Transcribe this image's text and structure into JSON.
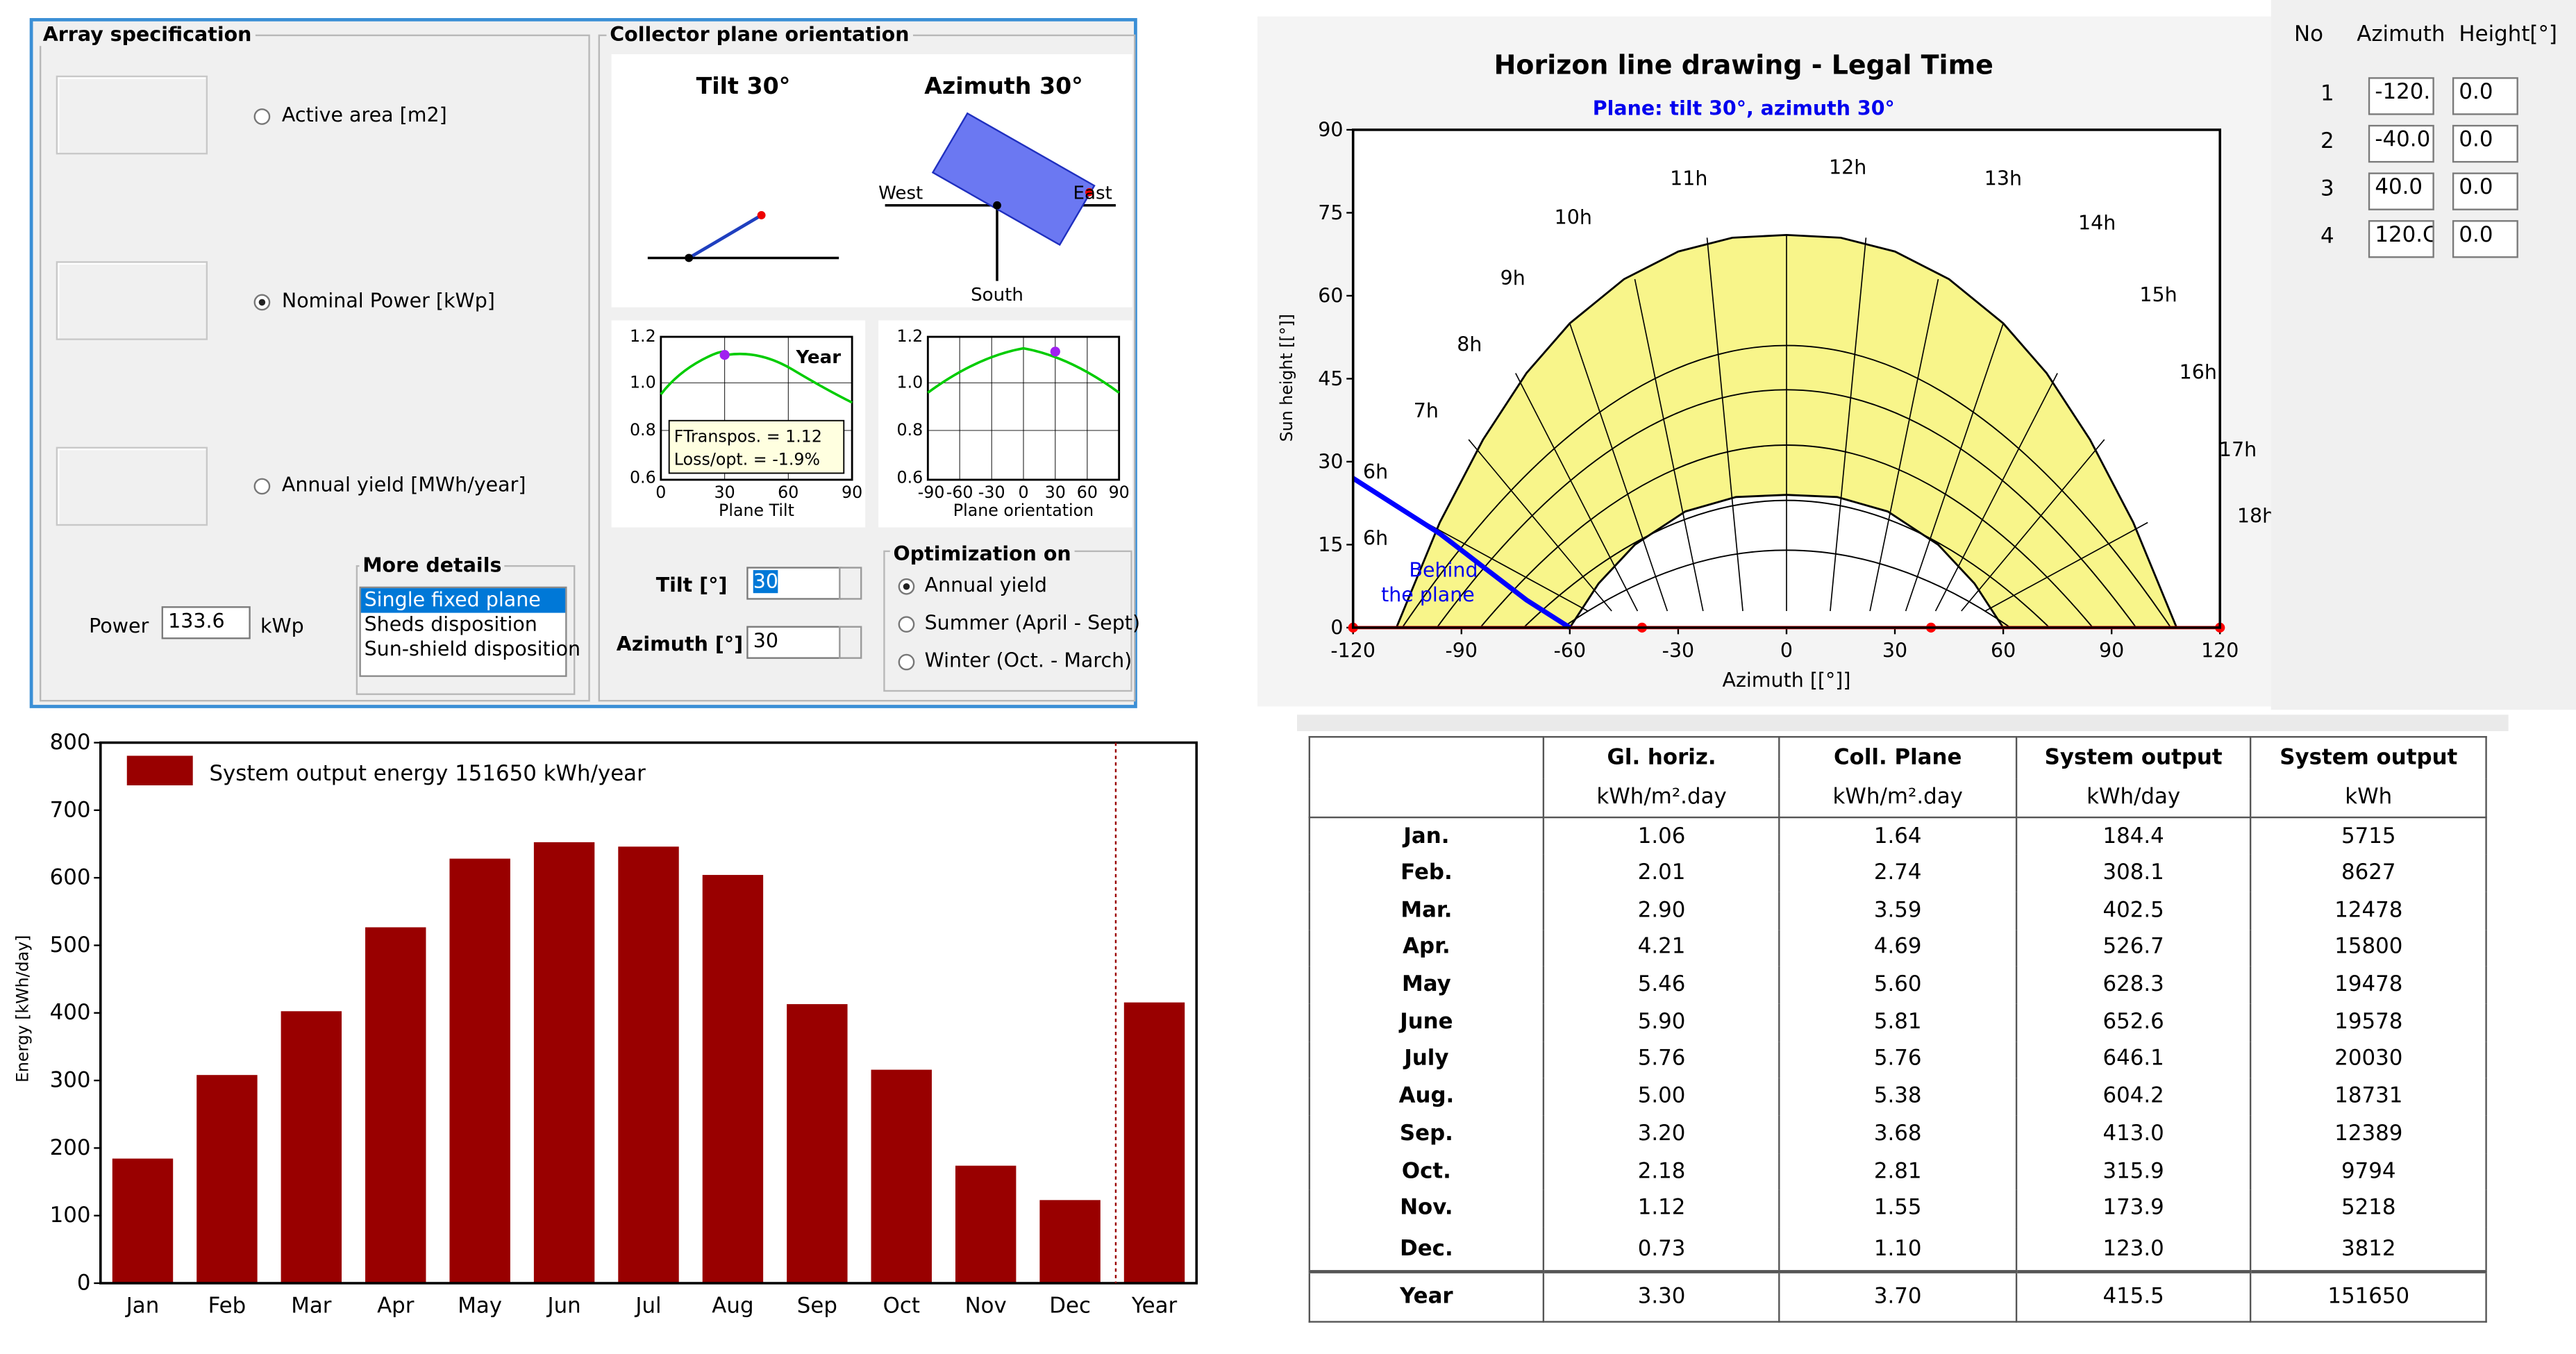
{
  "array_spec": {
    "title": "Array specification",
    "options": [
      {
        "label": "Active area [m2]",
        "selected": false
      },
      {
        "label": "Nominal Power [kWp]",
        "selected": true
      },
      {
        "label": "Annual yield [MWh/year]",
        "selected": false
      }
    ],
    "power_label": "Power",
    "power_value": "133.6",
    "power_unit": "kWp",
    "more_details": {
      "title": "More details",
      "items": [
        "Single fixed plane",
        "Sheds disposition",
        "Sun-shield disposition"
      ],
      "selected": "Single fixed plane"
    }
  },
  "orientation": {
    "title": "Collector plane orientation",
    "tilt_title": "Tilt 30°",
    "azimuth_title": "Azimuth 30°",
    "compass": {
      "west": "West",
      "east": "East",
      "south": "South"
    },
    "mini_chart_1": {
      "label": "Year",
      "xlabel": "Plane Tilt",
      "yticks": [
        "1.2",
        "1.0",
        "0.8",
        "0.6"
      ],
      "xticks": [
        "0",
        "30",
        "60",
        "90"
      ],
      "ftranspos": "FTranspos. = 1.12",
      "loss": "Loss/opt. = -1.9%"
    },
    "mini_chart_2": {
      "xlabel": "Plane orientation",
      "yticks": [
        "1.2",
        "1.0",
        "0.8",
        "0.6"
      ],
      "xticks": [
        "-90",
        "-60",
        "-30",
        "0",
        "30",
        "60",
        "90"
      ]
    },
    "tilt_label": "Tilt [°]",
    "tilt_value": "30",
    "azimuth_label": "Azimuth [°]",
    "azimuth_value": "30",
    "optimization": {
      "title": "Optimization on",
      "options": [
        {
          "label": "Annual yield",
          "selected": true
        },
        {
          "label": "Summer (April - Sept)",
          "selected": false
        },
        {
          "label": "Winter (Oct. - March)",
          "selected": false
        }
      ]
    }
  },
  "horizon": {
    "title": "Horizon line drawing - Legal Time",
    "subtitle": "Plane: tilt 30°, azimuth 30°",
    "behind_label_1": "Behind",
    "behind_label_2": "the plane",
    "hour_labels": [
      "6h",
      "6h",
      "7h",
      "8h",
      "9h",
      "10h",
      "11h",
      "12h",
      "13h",
      "14h",
      "15h",
      "16h",
      "17h",
      "18h"
    ],
    "table_headers": [
      "No",
      "Azimuth",
      "Height[°]"
    ],
    "points": [
      {
        "no": "1",
        "azimuth": "-120.",
        "height": "0.0"
      },
      {
        "no": "2",
        "azimuth": "-40.0",
        "height": "0.0"
      },
      {
        "no": "3",
        "azimuth": "40.0",
        "height": "0.0"
      },
      {
        "no": "4",
        "azimuth": "120.C",
        "height": "0.0"
      }
    ],
    "colors": {
      "sun_fill": "#f8f58a",
      "horizon": "#ff0000",
      "plane": "#0000ff"
    }
  },
  "chart_data": [
    {
      "type": "line",
      "title": "Horizon line drawing - Legal Time",
      "subtitle": "Plane: tilt 30°, azimuth 30°",
      "xlabel": "Azimuth [[°]]",
      "ylabel": "Sun height [[°]]",
      "xlim": [
        -120,
        120
      ],
      "ylim": [
        0,
        90
      ],
      "xticks": [
        -120,
        -90,
        -60,
        -30,
        0,
        30,
        60,
        90,
        120
      ],
      "yticks": [
        0,
        15,
        30,
        45,
        60,
        75,
        90
      ],
      "sun_path_peaks": [
        15,
        24,
        34,
        44,
        52
      ],
      "horizon_line": {
        "azimuth": [
          -120,
          -40,
          40,
          120
        ],
        "height": [
          0,
          0,
          0,
          0
        ]
      },
      "plane_limit": {
        "azimuth": [
          -120,
          -108,
          -96,
          -84,
          -72,
          -60
        ],
        "height": [
          27,
          22,
          17,
          11,
          5,
          0
        ]
      }
    },
    {
      "type": "bar",
      "categories": [
        "Jan",
        "Feb",
        "Mar",
        "Apr",
        "May",
        "Jun",
        "Jul",
        "Aug",
        "Sep",
        "Oct",
        "Nov",
        "Dec",
        "Year"
      ],
      "values": [
        184.4,
        308.1,
        402.5,
        526.7,
        628.3,
        652.6,
        646.1,
        604.2,
        413.0,
        315.9,
        173.9,
        123.0,
        415.5
      ],
      "legend": "System output energy   151650 kWh/year",
      "xlabel": "",
      "ylabel": "Energy [kWh/day]",
      "ylim": [
        0,
        800
      ],
      "yticks": [
        0,
        100,
        200,
        300,
        400,
        500,
        600,
        700,
        800
      ],
      "color": "#990000"
    }
  ],
  "monthly_table": {
    "headers": [
      "Gl. horiz.",
      "Coll. Plane",
      "System output",
      "System output"
    ],
    "units": [
      "kWh/m².day",
      "kWh/m².day",
      "kWh/day",
      "kWh"
    ],
    "rows": [
      {
        "month": "Jan.",
        "gl": "1.06",
        "coll": "1.64",
        "sys_day": "184.4",
        "sys": "5715"
      },
      {
        "month": "Feb.",
        "gl": "2.01",
        "coll": "2.74",
        "sys_day": "308.1",
        "sys": "8627"
      },
      {
        "month": "Mar.",
        "gl": "2.90",
        "coll": "3.59",
        "sys_day": "402.5",
        "sys": "12478"
      },
      {
        "month": "Apr.",
        "gl": "4.21",
        "coll": "4.69",
        "sys_day": "526.7",
        "sys": "15800"
      },
      {
        "month": "May",
        "gl": "5.46",
        "coll": "5.60",
        "sys_day": "628.3",
        "sys": "19478"
      },
      {
        "month": "June",
        "gl": "5.90",
        "coll": "5.81",
        "sys_day": "652.6",
        "sys": "19578"
      },
      {
        "month": "July",
        "gl": "5.76",
        "coll": "5.76",
        "sys_day": "646.1",
        "sys": "20030"
      },
      {
        "month": "Aug.",
        "gl": "5.00",
        "coll": "5.38",
        "sys_day": "604.2",
        "sys": "18731"
      },
      {
        "month": "Sep.",
        "gl": "3.20",
        "coll": "3.68",
        "sys_day": "413.0",
        "sys": "12389"
      },
      {
        "month": "Oct.",
        "gl": "2.18",
        "coll": "2.81",
        "sys_day": "315.9",
        "sys": "9794"
      },
      {
        "month": "Nov.",
        "gl": "1.12",
        "coll": "1.55",
        "sys_day": "173.9",
        "sys": "5218"
      },
      {
        "month": "Dec.",
        "gl": "0.73",
        "coll": "1.10",
        "sys_day": "123.0",
        "sys": "3812"
      }
    ],
    "year_row": {
      "month": "Year",
      "gl": "3.30",
      "coll": "3.70",
      "sys_day": "415.5",
      "sys": "151650"
    }
  }
}
